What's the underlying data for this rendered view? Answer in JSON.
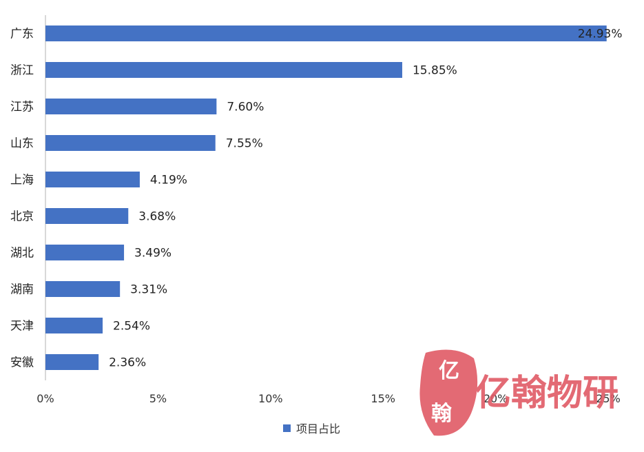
{
  "chart_data": {
    "type": "bar",
    "orientation": "horizontal",
    "categories": [
      "广东",
      "浙江",
      "江苏",
      "山东",
      "上海",
      "北京",
      "湖北",
      "湖南",
      "天津",
      "安徽"
    ],
    "series": [
      {
        "name": "项目占比",
        "values": [
          24.93,
          15.85,
          7.6,
          7.55,
          4.19,
          3.68,
          3.49,
          3.31,
          2.54,
          2.36
        ],
        "labels": [
          "24.93%",
          "15.85%",
          "7.60%",
          "7.55%",
          "4.19%",
          "3.68%",
          "3.49%",
          "3.31%",
          "2.54%",
          "2.36%"
        ],
        "color": "#4472c4"
      }
    ],
    "xlim": [
      0,
      25
    ],
    "xticks": [
      0,
      5,
      10,
      15,
      20,
      25
    ],
    "xtick_labels": [
      "0%",
      "5%",
      "10%",
      "15%",
      "20%",
      "25%"
    ],
    "grid": false,
    "legend_position": "bottom-center"
  },
  "watermark": {
    "text": "亿翰物研",
    "color": "#e05a66"
  }
}
